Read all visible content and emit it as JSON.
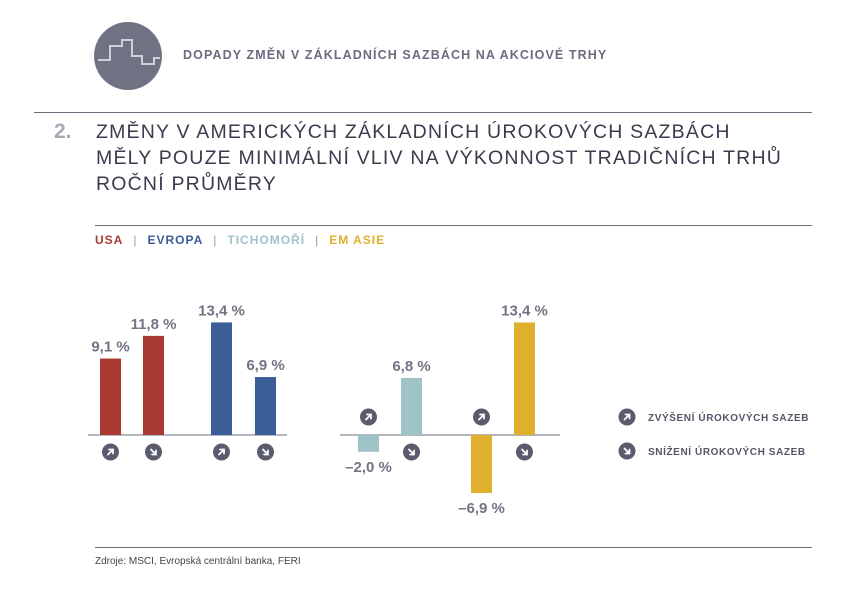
{
  "header": {
    "logo_icon": "steps-chart-icon",
    "title": "DOPADY ZMĚN V ZÁKLADNÍCH SAZBÁCH NA AKCIOVÉ TRHY"
  },
  "figure": {
    "number": "2.",
    "title_line1": "ZMĚNY V AMERICKÝCH ZÁKLADNÍCH ÚROKOVÝCH SAZBÁCH",
    "title_line2": "MĚLY POUZE MINIMÁLNÍ VLIV NA VÝKONNOST TRADIČNÍCH TRHŮ",
    "subtitle": "ROČNÍ PRŮMĚRY"
  },
  "legend_regions": [
    {
      "label": "USA",
      "color": "#a93a33"
    },
    {
      "label": "EVROPA",
      "color": "#3b5d98"
    },
    {
      "label": "TICHOMOŘÍ",
      "color": "#9fc4c8"
    },
    {
      "label": "EM ASIE",
      "color": "#deb02e"
    }
  ],
  "legend_arrows": [
    {
      "icon": "arrow-up-right-icon",
      "label": "ZVÝŠENÍ ÚROKOVÝCH SAZEB"
    },
    {
      "icon": "arrow-down-right-icon",
      "label": "SNÍŽENÍ ÚROKOVÝCH SAZEB"
    }
  ],
  "chart_data": {
    "type": "bar",
    "categories": [
      "USA",
      "EVROPA",
      "TICHOMOŘÍ",
      "EM ASIE"
    ],
    "series": [
      {
        "name": "ZVÝŠENÍ ÚROKOVÝCH SAZEB",
        "values": [
          9.1,
          13.4,
          -2.0,
          -6.9
        ],
        "labels": [
          "9,1 %",
          "13,4 %",
          "–2,0 %",
          "–6,9 %"
        ]
      },
      {
        "name": "SNÍŽENÍ ÚROKOVÝCH SAZEB",
        "values": [
          11.8,
          6.9,
          6.8,
          13.4
        ],
        "labels": [
          "11,8 %",
          "6,9 %",
          "6,8 %",
          "13,4 %"
        ]
      }
    ],
    "colors": [
      "#a93a33",
      "#3b5d98",
      "#9fc4c8",
      "#deb02e"
    ],
    "ylim": [
      -7,
      14
    ],
    "unit": "%"
  },
  "source": "Zdroje: MSCI, Evropská centrální banka, FERI"
}
